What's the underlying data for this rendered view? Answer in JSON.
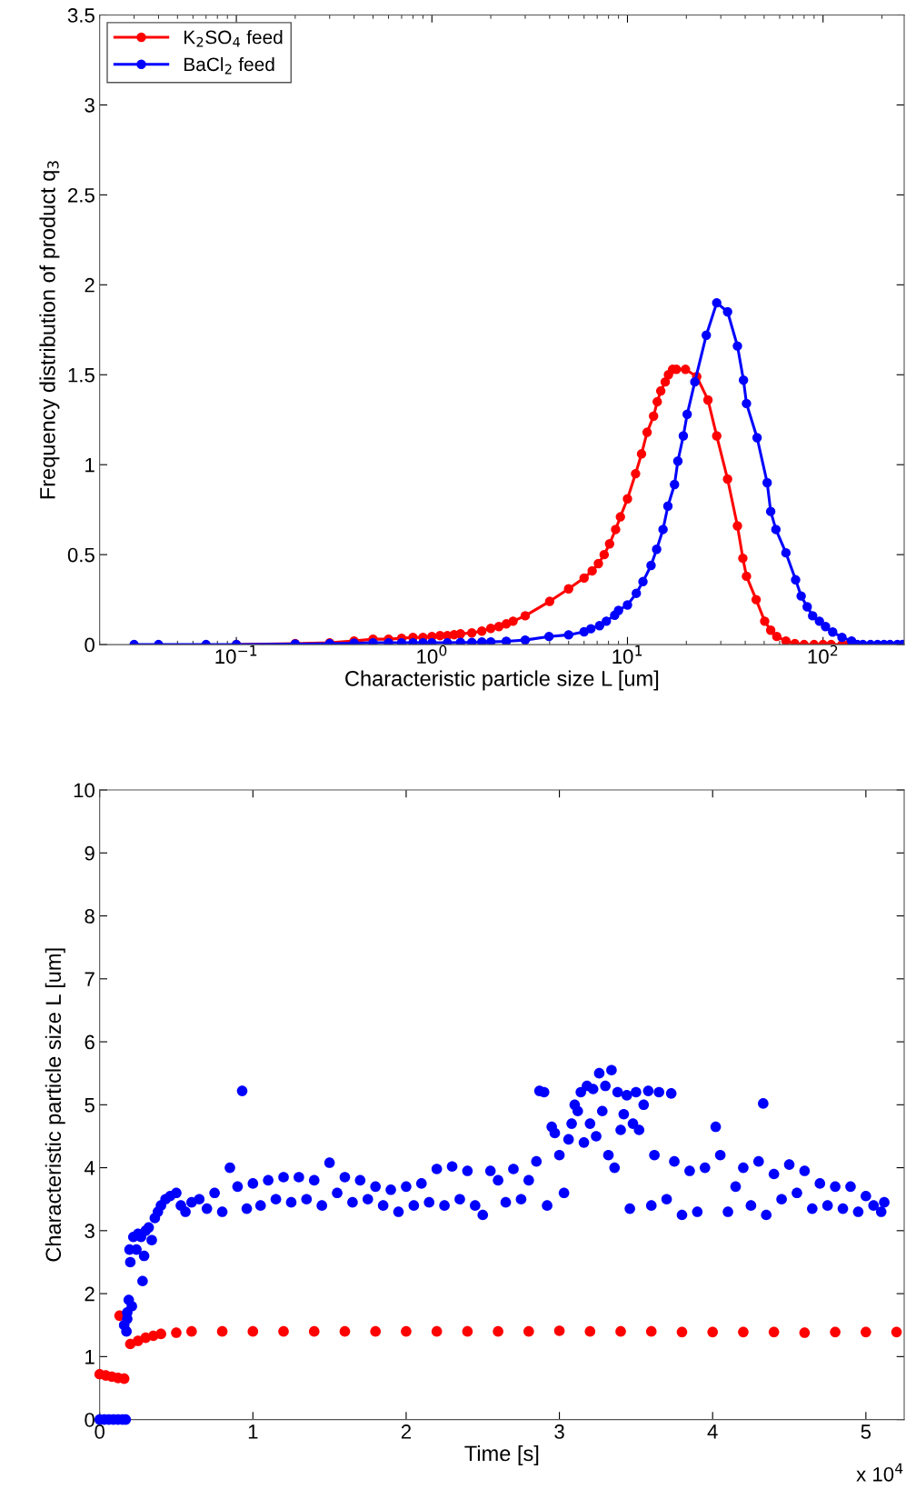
{
  "chart_data": [
    {
      "type": "line",
      "xlabel": "Characteristic particle size L [um]",
      "ylabel": "Frequency distribution of product q$_{3}$",
      "log": "x",
      "marker": "circle",
      "legend": "top left",
      "xlim": [
        0.02,
        260
      ],
      "ylim": [
        0,
        3.5
      ],
      "xticks": [
        {
          "value": 0.1,
          "label": "10$^{−1}$"
        },
        {
          "value": 1,
          "label": "10$^{0}$"
        },
        {
          "value": 10,
          "label": "10$^{1}$"
        },
        {
          "value": 100,
          "label": "10$^{2}$"
        }
      ],
      "yticks": [
        0,
        0.5,
        1,
        1.5,
        2,
        2.5,
        3,
        3.5
      ],
      "series": [
        {
          "name": "K$_{2}$SO$_{4}$ feed",
          "color": "#ff0000",
          "x": [
            0.1,
            0.2,
            0.3,
            0.4,
            0.5,
            0.6,
            0.7,
            0.8,
            0.9,
            1.0,
            1.1,
            1.2,
            1.3,
            1.4,
            1.6,
            1.8,
            2.0,
            2.2,
            2.4,
            2.6,
            3.0,
            4.0,
            5.0,
            6.0,
            6.6,
            7.1,
            7.6,
            8.1,
            8.7,
            9.2,
            10,
            11,
            11.8,
            12.6,
            13.6,
            14.2,
            14.8,
            15.6,
            16.2,
            17,
            17.8,
            19.8,
            22.6,
            25.8,
            28.6,
            32.5,
            36.5,
            38.9,
            40.6,
            45.5,
            50.3,
            54,
            58,
            64.6,
            71.8,
            80,
            90,
            100,
            110,
            125,
            135
          ],
          "values": [
            0,
            0.005,
            0.01,
            0.02,
            0.03,
            0.03,
            0.035,
            0.04,
            0.04,
            0.045,
            0.05,
            0.05,
            0.055,
            0.06,
            0.065,
            0.075,
            0.09,
            0.1,
            0.115,
            0.13,
            0.16,
            0.24,
            0.31,
            0.37,
            0.41,
            0.45,
            0.5,
            0.56,
            0.64,
            0.71,
            0.81,
            0.95,
            1.06,
            1.18,
            1.27,
            1.35,
            1.41,
            1.46,
            1.5,
            1.53,
            1.53,
            1.53,
            1.49,
            1.36,
            1.16,
            0.92,
            0.66,
            0.48,
            0.38,
            0.25,
            0.13,
            0.08,
            0.045,
            0.02,
            0.005,
            0,
            0,
            0,
            0,
            0,
            0
          ]
        },
        {
          "name": "BaCl$_{2}$ feed",
          "color": "#0000ff",
          "x": [
            0.03,
            0.04,
            0.07,
            0.1,
            0.2,
            0.3,
            0.4,
            0.5,
            0.6,
            0.7,
            0.8,
            0.9,
            1.0,
            1.2,
            1.4,
            1.6,
            1.8,
            2.0,
            2.4,
            3.0,
            3.97,
            5.0,
            6.0,
            6.5,
            7.2,
            7.8,
            8.6,
            9.0,
            10.0,
            11.1,
            12.0,
            13.2,
            14.1,
            15.2,
            16.1,
            17.4,
            18.1,
            19.3,
            20.2,
            22.1,
            25.3,
            28.6,
            32.5,
            36.5,
            39.2,
            40.6,
            46,
            51.8,
            54,
            57.4,
            64.6,
            72.4,
            77.3,
            83,
            88.5,
            95.8,
            103,
            112,
            125,
            140,
            150,
            160,
            175,
            190,
            205,
            220,
            240,
            255
          ],
          "values": [
            0,
            0,
            0,
            0,
            0.003,
            0.005,
            0.008,
            0.01,
            0.01,
            0.01,
            0.01,
            0.01,
            0.01,
            0.01,
            0.012,
            0.012,
            0.014,
            0.015,
            0.018,
            0.025,
            0.045,
            0.054,
            0.071,
            0.088,
            0.105,
            0.13,
            0.163,
            0.19,
            0.22,
            0.285,
            0.35,
            0.44,
            0.53,
            0.64,
            0.77,
            0.89,
            1.02,
            1.16,
            1.28,
            1.46,
            1.72,
            1.9,
            1.85,
            1.66,
            1.47,
            1.34,
            1.15,
            0.9,
            0.74,
            0.64,
            0.51,
            0.36,
            0.27,
            0.21,
            0.16,
            0.13,
            0.1,
            0.07,
            0.04,
            0.02,
            0,
            0,
            0,
            0,
            0,
            0,
            0,
            0
          ]
        }
      ]
    },
    {
      "type": "scatter",
      "xlabel": "Time [s]",
      "ylabel": "Characteristic particle size L [um]",
      "marker": "circle",
      "xlim": [
        0,
        5.25
      ],
      "ylim": [
        0,
        10
      ],
      "xticks": [
        0,
        1,
        2,
        3,
        4,
        5
      ],
      "yticks": [
        0,
        1,
        2,
        3,
        4,
        5,
        6,
        7,
        8,
        9,
        10
      ],
      "annotations": [
        "x 10$^{4}$"
      ],
      "series": [
        {
          "color": "#ff0000",
          "x": [
            0,
            0.04,
            0.08,
            0.12,
            0.16,
            0.13,
            0.2,
            0.25,
            0.3,
            0.35,
            0.4,
            0.5,
            0.6,
            0.8,
            1.0,
            1.2,
            1.4,
            1.6,
            1.8,
            2.0,
            2.2,
            2.4,
            2.6,
            2.8,
            3.0,
            3.2,
            3.4,
            3.6,
            3.8,
            4.0,
            4.2,
            4.4,
            4.6,
            4.8,
            5.0,
            5.2
          ],
          "values": [
            0.72,
            0.7,
            0.68,
            0.66,
            0.65,
            1.65,
            1.2,
            1.25,
            1.3,
            1.33,
            1.36,
            1.38,
            1.4,
            1.4,
            1.4,
            1.4,
            1.4,
            1.4,
            1.4,
            1.4,
            1.4,
            1.4,
            1.4,
            1.4,
            1.41,
            1.4,
            1.4,
            1.4,
            1.39,
            1.39,
            1.39,
            1.39,
            1.38,
            1.39,
            1.39,
            1.39
          ]
        },
        {
          "color": "#0000ff",
          "x": [
            0,
            0.03,
            0.06,
            0.09,
            0.12,
            0.15,
            0.17,
            0.16,
            0.18,
            0.175,
            0.18,
            0.19,
            0.195,
            0.2,
            0.21,
            0.22,
            0.24,
            0.25,
            0.27,
            0.28,
            0.29,
            0.3,
            0.32,
            0.34,
            0.36,
            0.38,
            0.4,
            0.43,
            0.46,
            0.5,
            0.53,
            0.56,
            0.6,
            0.65,
            0.7,
            0.75,
            0.8,
            0.85,
            0.9,
            0.93,
            0.96,
            1.0,
            1.05,
            1.1,
            1.15,
            1.2,
            1.25,
            1.3,
            1.35,
            1.4,
            1.45,
            1.5,
            1.55,
            1.6,
            1.65,
            1.7,
            1.75,
            1.8,
            1.85,
            1.9,
            1.95,
            2.0,
            2.05,
            2.1,
            2.15,
            2.2,
            2.25,
            2.3,
            2.35,
            2.4,
            2.45,
            2.5,
            2.55,
            2.6,
            2.65,
            2.7,
            2.75,
            2.8,
            2.85,
            2.87,
            2.9,
            2.92,
            2.95,
            2.97,
            3.0,
            3.03,
            3.06,
            3.08,
            3.1,
            3.12,
            3.14,
            3.16,
            3.18,
            3.2,
            3.22,
            3.24,
            3.26,
            3.28,
            3.3,
            3.32,
            3.34,
            3.36,
            3.38,
            3.4,
            3.42,
            3.44,
            3.46,
            3.48,
            3.5,
            3.52,
            3.55,
            3.58,
            3.6,
            3.62,
            3.65,
            3.7,
            3.73,
            3.75,
            3.8,
            3.85,
            3.9,
            3.95,
            4.02,
            4.05,
            4.1,
            4.15,
            4.2,
            4.25,
            4.3,
            4.33,
            4.35,
            4.4,
            4.45,
            4.5,
            4.55,
            4.6,
            4.65,
            4.7,
            4.75,
            4.8,
            4.85,
            4.9,
            4.95,
            5.0,
            5.05,
            5.1,
            5.12
          ],
          "values": [
            0,
            0,
            0,
            0,
            0,
            0,
            0,
            1.5,
            1.7,
            1.4,
            1.6,
            1.9,
            2.7,
            2.5,
            1.8,
            2.9,
            2.7,
            2.95,
            2.9,
            2.2,
            2.6,
            3.0,
            3.05,
            2.85,
            3.2,
            3.3,
            3.4,
            3.5,
            3.55,
            3.6,
            3.4,
            3.3,
            3.45,
            3.5,
            3.35,
            3.6,
            3.3,
            4.0,
            3.7,
            5.22,
            3.35,
            3.75,
            3.4,
            3.8,
            3.5,
            3.85,
            3.45,
            3.85,
            3.5,
            3.8,
            3.4,
            4.08,
            3.6,
            3.85,
            3.45,
            3.8,
            3.5,
            3.7,
            3.4,
            3.65,
            3.3,
            3.7,
            3.4,
            3.75,
            3.45,
            3.98,
            3.4,
            4.02,
            3.5,
            3.95,
            3.4,
            3.25,
            3.95,
            3.8,
            3.45,
            3.98,
            3.5,
            3.8,
            4.1,
            5.22,
            5.2,
            3.4,
            4.65,
            4.55,
            4.2,
            3.6,
            4.45,
            4.7,
            5.0,
            4.9,
            5.2,
            4.4,
            5.3,
            4.7,
            5.25,
            4.5,
            5.5,
            4.9,
            5.3,
            4.2,
            5.55,
            4.0,
            5.2,
            4.6,
            4.85,
            5.15,
            3.35,
            4.7,
            5.2,
            4.6,
            5.0,
            5.22,
            3.4,
            4.2,
            5.2,
            3.5,
            5.18,
            4.1,
            3.25,
            3.95,
            3.3,
            4.0,
            4.65,
            4.2,
            3.3,
            3.7,
            4.0,
            3.4,
            4.1,
            5.02,
            3.25,
            3.9,
            3.5,
            4.05,
            3.6,
            3.95,
            3.35,
            3.75,
            3.4,
            3.7,
            3.35,
            3.7,
            3.3,
            3.55,
            3.4,
            3.3,
            3.45
          ]
        }
      ]
    }
  ]
}
